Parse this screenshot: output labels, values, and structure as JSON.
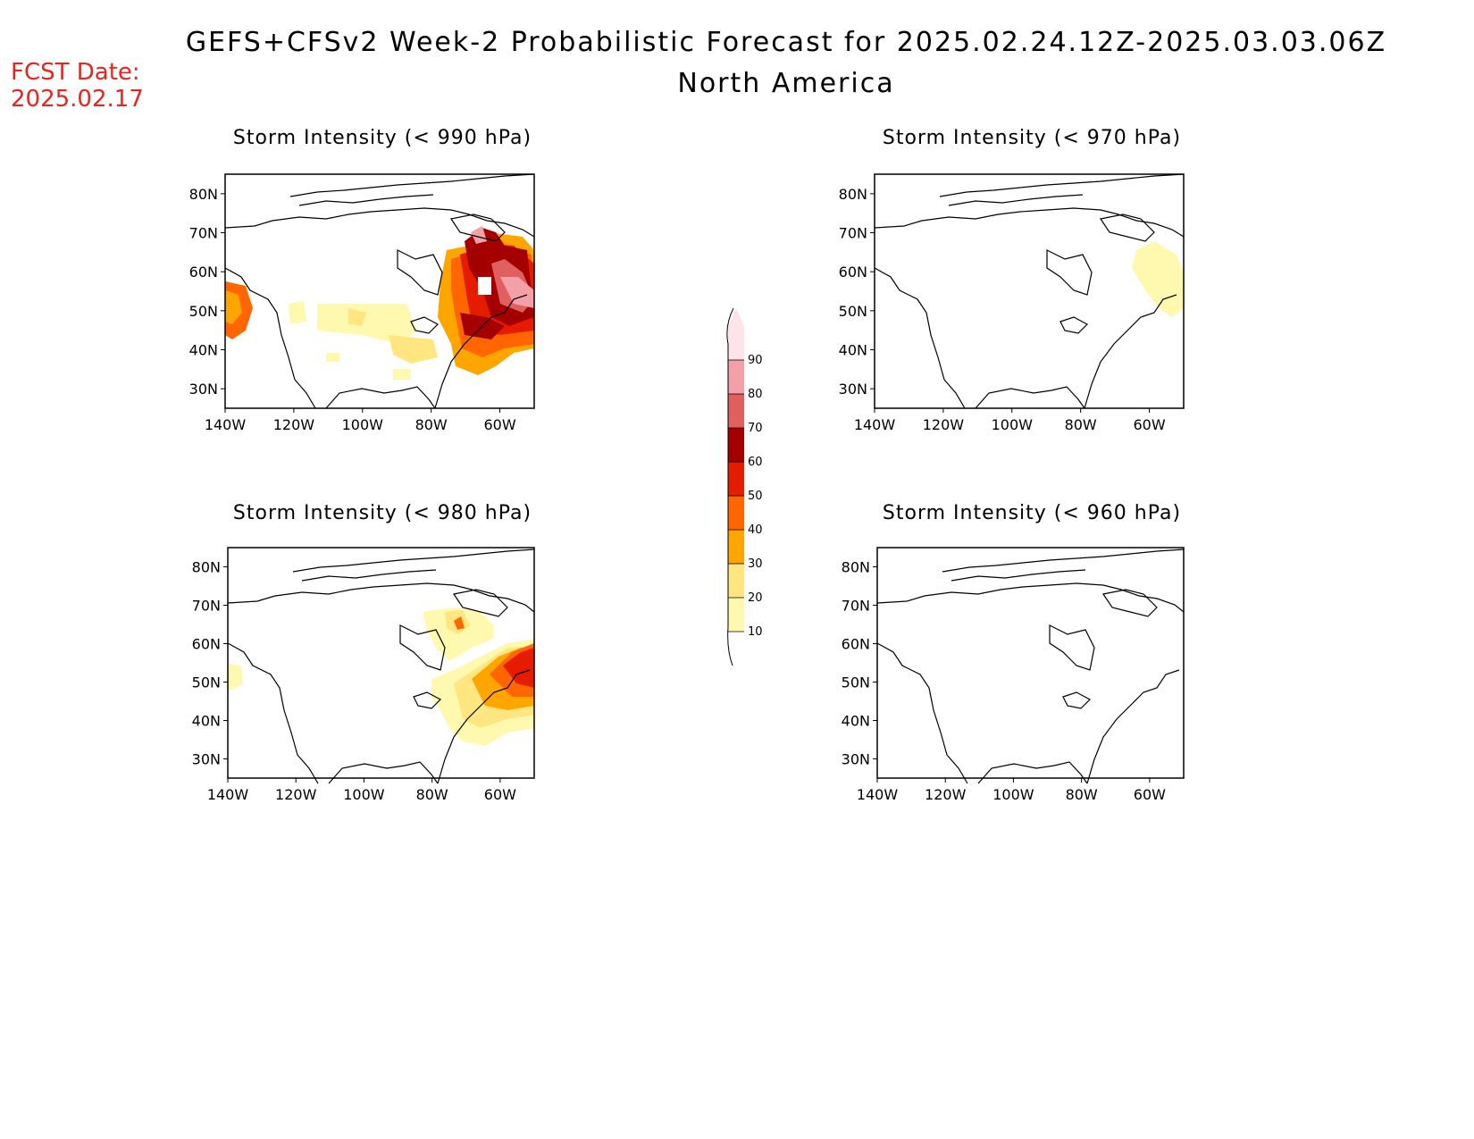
{
  "header": {
    "title": "GEFS+CFSv2 Week-2 Probabilistic Forecast for 2025.02.24.12Z-2025.03.03.06Z",
    "subtitle": "North America",
    "fcst_label": "FCST Date:",
    "fcst_date": "2025.02.17"
  },
  "axes": {
    "lat_labels": [
      "80N",
      "70N",
      "60N",
      "50N",
      "40N",
      "30N"
    ],
    "lon_labels": [
      "140W",
      "120W",
      "100W",
      "80W",
      "60W"
    ]
  },
  "panels": [
    {
      "id": "p990",
      "title": "Storm Intensity (< 990 hPa)"
    },
    {
      "id": "p970",
      "title": "Storm Intensity (< 970 hPa)"
    },
    {
      "id": "p980",
      "title": "Storm Intensity (< 980 hPa)"
    },
    {
      "id": "p960",
      "title": "Storm Intensity (< 960 hPa)"
    }
  ],
  "colorbar": {
    "levels": [
      "10",
      "20",
      "30",
      "40",
      "50",
      "60",
      "70",
      "80",
      "90"
    ],
    "colors": [
      "#fff9b0",
      "#ffe680",
      "#ffa500",
      "#ff6600",
      "#e61c00",
      "#a50000",
      "#e06060",
      "#f4a0a8",
      "#fde4e8"
    ]
  }
}
